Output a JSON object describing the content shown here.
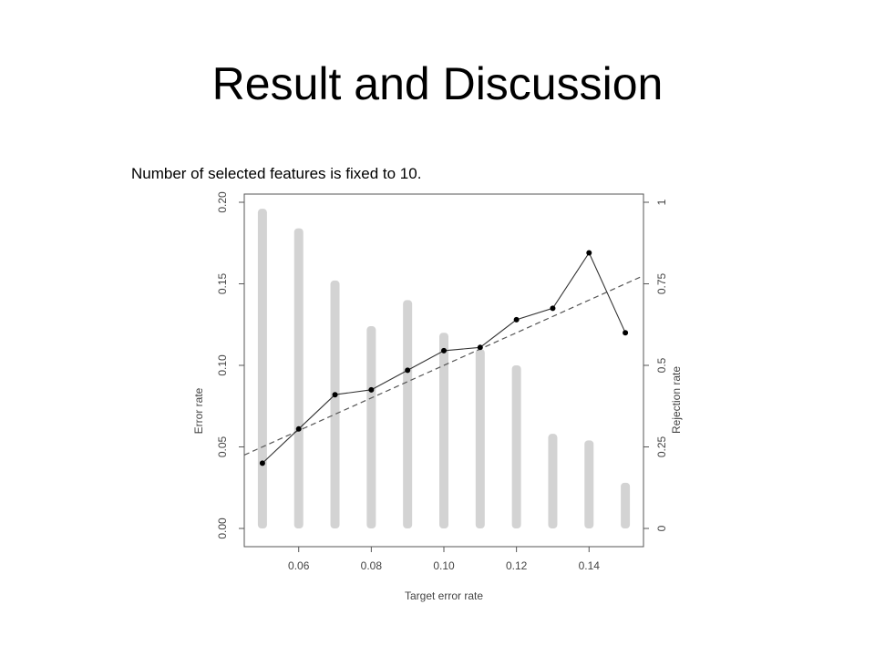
{
  "slide": {
    "title": "Result and Discussion",
    "subtitle": "Number of selected features is fixed to 10."
  },
  "chart_data": {
    "type": "line",
    "x": [
      0.05,
      0.06,
      0.07,
      0.08,
      0.09,
      0.1,
      0.11,
      0.12,
      0.13,
      0.14,
      0.15
    ],
    "series": [
      {
        "axis": "left",
        "mark": "line-points",
        "values": [
          0.04,
          0.061,
          0.082,
          0.085,
          0.097,
          0.109,
          0.111,
          0.128,
          0.135,
          0.169,
          0.12
        ]
      },
      {
        "axis": "right",
        "mark": "bar",
        "color": "#d3d3d3",
        "values": [
          0.98,
          0.92,
          0.76,
          0.62,
          0.7,
          0.6,
          0.55,
          0.5,
          0.29,
          0.27,
          0.14
        ]
      },
      {
        "axis": "left",
        "mark": "dashed-line",
        "x": [
          0.045,
          0.155
        ],
        "values": [
          0.045,
          0.155
        ]
      }
    ],
    "xlabel": "Target error rate",
    "ylabel": "Error rate",
    "y2label": "Rejection rate",
    "xlim": [
      0.045,
      0.155
    ],
    "ylim": [
      0,
      0.2
    ],
    "y2lim": [
      0,
      1
    ],
    "xticks": [
      "0.06",
      "0.08",
      "0.10",
      "0.12",
      "0.14"
    ],
    "yticks": [
      "0.00",
      "0.05",
      "0.10",
      "0.15",
      "0.20"
    ],
    "y2ticks": [
      "0",
      "0.25",
      "0.5",
      "0.75",
      "1"
    ],
    "grid": false
  }
}
